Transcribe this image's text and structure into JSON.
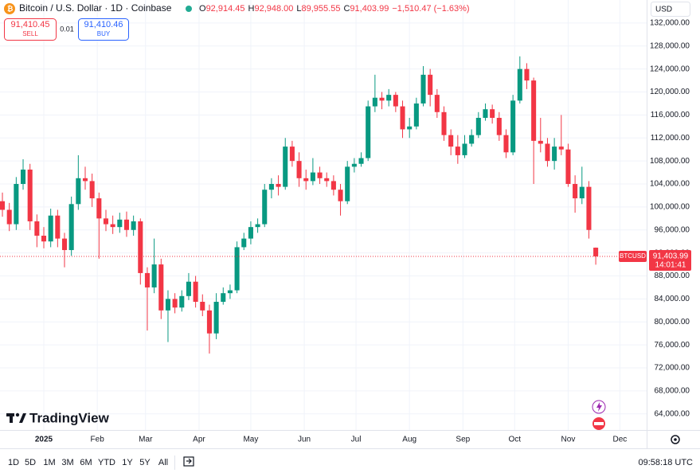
{
  "header": {
    "symbol_title": "Bitcoin / U.S. Dollar · 1D · Coinbase",
    "ohlc": [
      {
        "key": "O",
        "value": "92,914.45"
      },
      {
        "key": "H",
        "value": "92,948.00"
      },
      {
        "key": "L",
        "value": "89,955.55"
      },
      {
        "key": "C",
        "value": "91,403.99"
      }
    ],
    "change": "−1,510.47 (−1.63%)",
    "sell": {
      "price": "91,410.45",
      "label": "SELL"
    },
    "spread": "0.01",
    "buy": {
      "price": "91,410.46",
      "label": "BUY"
    },
    "currency": "USD"
  },
  "chart_data": {
    "type": "candlestick",
    "up_color": "#089981",
    "down_color": "#f23645",
    "grid": true,
    "ylim": [
      61200,
      136000
    ],
    "xlim": [
      -25.4,
      349.5
    ],
    "yticks": [
      {
        "value": 64000,
        "label": "64,000.00"
      },
      {
        "value": 68000,
        "label": "68,000.00"
      },
      {
        "value": 72000,
        "label": "72,000.00"
      },
      {
        "value": 76000,
        "label": "76,000.00"
      },
      {
        "value": 80000,
        "label": "80,000.00"
      },
      {
        "value": 84000,
        "label": "84,000.00"
      },
      {
        "value": 88000,
        "label": "88,000.00"
      },
      {
        "value": 92000,
        "label": "92,000.00"
      },
      {
        "value": 96000,
        "label": "96,000.00"
      },
      {
        "value": 100000,
        "label": "100,000.00"
      },
      {
        "value": 104000,
        "label": "104,000.00"
      },
      {
        "value": 108000,
        "label": "108,000.00"
      },
      {
        "value": 112000,
        "label": "112,000.00"
      },
      {
        "value": 116000,
        "label": "116,000.00"
      },
      {
        "value": 120000,
        "label": "120,000.00"
      },
      {
        "value": 124000,
        "label": "124,000.00"
      },
      {
        "value": 128000,
        "label": "128,000.00"
      },
      {
        "value": 132000,
        "label": "132,000.00"
      }
    ],
    "xticks": [
      {
        "value": 0,
        "label": "2025"
      },
      {
        "value": 31,
        "label": "Feb"
      },
      {
        "value": 59,
        "label": "Mar"
      },
      {
        "value": 90,
        "label": "Apr"
      },
      {
        "value": 120,
        "label": "May"
      },
      {
        "value": 151,
        "label": "Jun"
      },
      {
        "value": 181,
        "label": "Jul"
      },
      {
        "value": 212,
        "label": "Aug"
      },
      {
        "value": 243,
        "label": "Sep"
      },
      {
        "value": 273,
        "label": "Oct"
      },
      {
        "value": 304,
        "label": "Nov"
      },
      {
        "value": 334,
        "label": "Dec"
      }
    ],
    "x": [
      -24,
      -20,
      -16,
      -12,
      -8,
      -4,
      0,
      4,
      8,
      12,
      16,
      20,
      24,
      28,
      32,
      36,
      40,
      44,
      48,
      52,
      56,
      60,
      64,
      68,
      72,
      76,
      80,
      84,
      88,
      92,
      96,
      100,
      104,
      108,
      112,
      116,
      120,
      124,
      128,
      132,
      136,
      140,
      144,
      148,
      152,
      156,
      160,
      164,
      168,
      172,
      176,
      180,
      184,
      188,
      192,
      196,
      200,
      204,
      208,
      212,
      216,
      220,
      224,
      228,
      232,
      236,
      240,
      244,
      248,
      252,
      256,
      260,
      264,
      268,
      272,
      276,
      280,
      284,
      288,
      292,
      296,
      300,
      304,
      308,
      312,
      316,
      320
    ],
    "series": [
      {
        "name": "BTCUSD",
        "open": [
          101000,
          99500,
          97000,
          104000,
          106500,
          97500,
          95000,
          94000,
          98500,
          94500,
          92500,
          100500,
          105000,
          104500,
          101500,
          98000,
          97000,
          96500,
          97800,
          96000,
          97500,
          88500,
          86000,
          90000,
          82000,
          84000,
          82500,
          84500,
          87000,
          83500,
          82000,
          78000,
          83500,
          85000,
          85500,
          93000,
          94500,
          96500,
          97000,
          103000,
          104000,
          103500,
          110500,
          108000,
          105000,
          104500,
          106000,
          105000,
          104500,
          103000,
          101000,
          107000,
          107500,
          108500,
          117500,
          119000,
          118500,
          119500,
          117500,
          113500,
          114000,
          118000,
          123000,
          119500,
          116500,
          112500,
          110500,
          109000,
          111000,
          112500,
          115500,
          117000,
          115500,
          112500,
          109500,
          118500,
          124000,
          122000,
          111500,
          111000,
          108000,
          110500,
          110000,
          104000,
          101500,
          103500,
          92914.45
        ],
        "high": [
          102500,
          100700,
          105200,
          108300,
          107500,
          98700,
          96500,
          99700,
          99500,
          95500,
          101800,
          109000,
          107000,
          105800,
          102500,
          99500,
          98500,
          99000,
          99200,
          98500,
          98000,
          89500,
          94500,
          91000,
          85500,
          85000,
          85500,
          88500,
          88000,
          84800,
          83000,
          85000,
          86000,
          86500,
          94000,
          95500,
          97500,
          98000,
          104000,
          105000,
          105500,
          112000,
          111500,
          109500,
          106500,
          108500,
          107000,
          106000,
          105500,
          104000,
          108000,
          108500,
          109500,
          118500,
          123000,
          120000,
          120500,
          120000,
          118500,
          115500,
          119000,
          124500,
          124000,
          120500,
          117500,
          113500,
          112500,
          112500,
          113500,
          116500,
          118000,
          117800,
          116500,
          113500,
          119500,
          126200,
          125000,
          122500,
          115500,
          112000,
          112000,
          116000,
          111000,
          105500,
          107000,
          104500,
          92948
        ],
        "low": [
          98300,
          95800,
          96000,
          103000,
          96000,
          93000,
          92800,
          93000,
          93000,
          89500,
          91500,
          99500,
          103000,
          100000,
          91000,
          95800,
          95300,
          95500,
          94800,
          95000,
          86500,
          78500,
          85000,
          80500,
          76500,
          81500,
          81800,
          83800,
          82500,
          81000,
          74500,
          77000,
          83000,
          84000,
          85000,
          92500,
          93500,
          95500,
          96500,
          101500,
          102000,
          103000,
          107000,
          103500,
          103000,
          103800,
          104000,
          103500,
          102000,
          98500,
          100500,
          106000,
          107000,
          108000,
          116500,
          117000,
          117500,
          116500,
          112000,
          112000,
          113500,
          117500,
          117500,
          115500,
          111500,
          109000,
          107500,
          108500,
          110500,
          112000,
          115000,
          114500,
          111500,
          108500,
          109000,
          118000,
          120500,
          104000,
          109500,
          107000,
          106500,
          109000,
          103500,
          99000,
          100500,
          94500,
          89955.55
        ],
        "close": [
          99500,
          97000,
          104000,
          106500,
          97500,
          95000,
          94000,
          98500,
          94500,
          92500,
          100500,
          105000,
          104500,
          101500,
          98000,
          97000,
          96500,
          97800,
          96000,
          97500,
          88500,
          86000,
          90000,
          82000,
          84000,
          82500,
          84500,
          87000,
          83500,
          82000,
          78000,
          83500,
          85000,
          85500,
          93000,
          94500,
          96500,
          97000,
          103000,
          104000,
          103500,
          110500,
          108000,
          105000,
          104500,
          106000,
          105000,
          104500,
          103000,
          101000,
          107000,
          107500,
          108500,
          117500,
          119000,
          118500,
          119500,
          117500,
          113500,
          114000,
          118000,
          123000,
          119500,
          116500,
          112500,
          110500,
          109000,
          111000,
          112500,
          115500,
          117000,
          115500,
          112500,
          109500,
          118500,
          124000,
          122000,
          111500,
          111000,
          108000,
          110500,
          110000,
          104000,
          101500,
          103500,
          96000,
          91403.99
        ]
      }
    ],
    "last_price": 91403.99,
    "last_price_label": "91,403.99",
    "countdown": "14:01:41"
  },
  "logo": "TradingView",
  "toolbar": {
    "ranges": [
      "1D",
      "5D",
      "1M",
      "3M",
      "6M",
      "YTD",
      "1Y",
      "5Y",
      "All"
    ],
    "clock": "09:58:18 UTC"
  }
}
